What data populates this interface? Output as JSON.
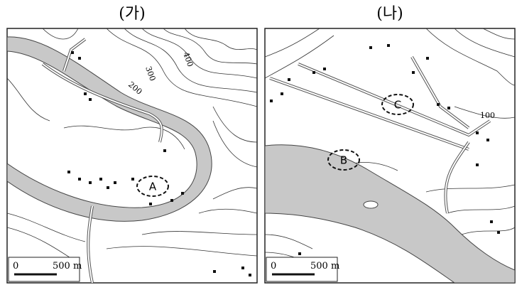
{
  "panels": [
    {
      "title": "(가)",
      "labels": [
        "A"
      ],
      "contour_labels": [
        "200",
        "300",
        "400"
      ],
      "scale": {
        "zero": "0",
        "distance": "500 m"
      }
    },
    {
      "title": "(나)",
      "labels": [
        "B",
        "C"
      ],
      "contour_labels": [
        "100"
      ],
      "scale": {
        "zero": "0",
        "distance": "500 m"
      }
    }
  ]
}
